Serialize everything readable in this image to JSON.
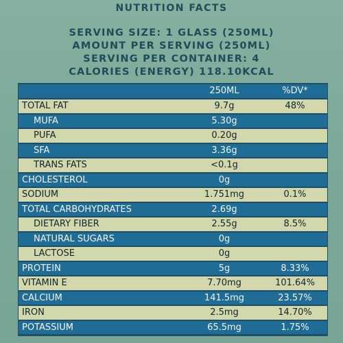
{
  "title": "NUTRITION FACTS",
  "header_lines": [
    "SERVING SIZE: 1 GLASS (250ML)",
    "AMOUNT PER SERVING  (250ML)",
    "SERVING PER CONTAINER: 4",
    "CALORIES (ENERGY)  118.10KCAL"
  ],
  "table": {
    "col_amount": "250ML",
    "col_dv": "%DV*",
    "rows": [
      {
        "name": "TOTAL FAT",
        "amount": "9.7g",
        "dv": "48%",
        "indent": false
      },
      {
        "name": "MUFA",
        "amount": "5.30g",
        "dv": "",
        "indent": true
      },
      {
        "name": "PUFA",
        "amount": "0.20g",
        "dv": "",
        "indent": true
      },
      {
        "name": "SFA",
        "amount": "3.36g",
        "dv": "",
        "indent": true
      },
      {
        "name": "TRANS FATS",
        "amount": "<0.1g",
        "dv": "",
        "indent": true
      },
      {
        "name": "CHOLESTEROL",
        "amount": "0g",
        "dv": "",
        "indent": false
      },
      {
        "name": "SODIUM",
        "amount": "1.751mg",
        "dv": "0.1%",
        "indent": false
      },
      {
        "name": "TOTAL CARBOHYDRATES",
        "amount": "2.69g",
        "dv": "",
        "indent": false
      },
      {
        "name": "DIETARY FIBER",
        "amount": "2.55g",
        "dv": "8.5%",
        "indent": true
      },
      {
        "name": "NATURAL SUGARS",
        "amount": "0g",
        "dv": "",
        "indent": true
      },
      {
        "name": "LACTOSE",
        "amount": "0g",
        "dv": "",
        "indent": true
      },
      {
        "name": "PROTEIN",
        "amount": "5g",
        "dv": "8.33%",
        "indent": false
      },
      {
        "name": "VITAMIN E",
        "amount": "7.70mg",
        "dv": "101.64%",
        "indent": false
      },
      {
        "name": "CALCIUM",
        "amount": "141.5mg",
        "dv": "23.57%",
        "indent": false
      },
      {
        "name": "IRON",
        "amount": "2.5mg",
        "dv": "14.70%",
        "indent": false
      },
      {
        "name": "POTASSIUM",
        "amount": "65.5mg",
        "dv": "1.75%",
        "indent": false
      }
    ]
  }
}
